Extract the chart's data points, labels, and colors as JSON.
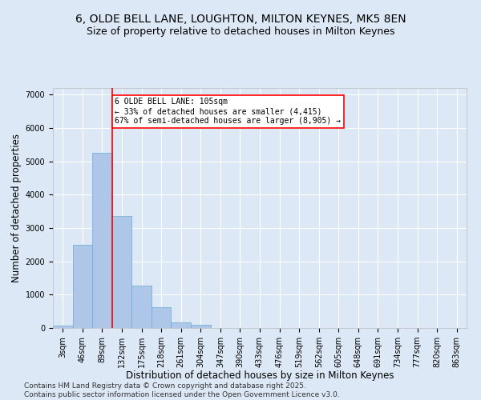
{
  "title": "6, OLDE BELL LANE, LOUGHTON, MILTON KEYNES, MK5 8EN",
  "subtitle": "Size of property relative to detached houses in Milton Keynes",
  "xlabel": "Distribution of detached houses by size in Milton Keynes",
  "ylabel": "Number of detached properties",
  "categories": [
    "3sqm",
    "46sqm",
    "89sqm",
    "132sqm",
    "175sqm",
    "218sqm",
    "261sqm",
    "304sqm",
    "347sqm",
    "390sqm",
    "433sqm",
    "476sqm",
    "519sqm",
    "562sqm",
    "605sqm",
    "648sqm",
    "691sqm",
    "734sqm",
    "777sqm",
    "820sqm",
    "863sqm"
  ],
  "bar_values": [
    80,
    2500,
    5250,
    3350,
    1280,
    620,
    180,
    90,
    0,
    0,
    0,
    0,
    0,
    0,
    0,
    0,
    0,
    0,
    0,
    0,
    0
  ],
  "bar_color": "#aec6e8",
  "bar_edge_color": "#6aaad4",
  "background_color": "#dce8f5",
  "grid_color": "#ffffff",
  "vline_color": "red",
  "annotation_text": "6 OLDE BELL LANE: 105sqm\n← 33% of detached houses are smaller (4,415)\n67% of semi-detached houses are larger (8,905) →",
  "ylim": [
    0,
    7200
  ],
  "footer": "Contains HM Land Registry data © Crown copyright and database right 2025.\nContains public sector information licensed under the Open Government Licence v3.0.",
  "title_fontsize": 10,
  "subtitle_fontsize": 9,
  "axis_label_fontsize": 8.5,
  "tick_fontsize": 7,
  "footer_fontsize": 6.5
}
